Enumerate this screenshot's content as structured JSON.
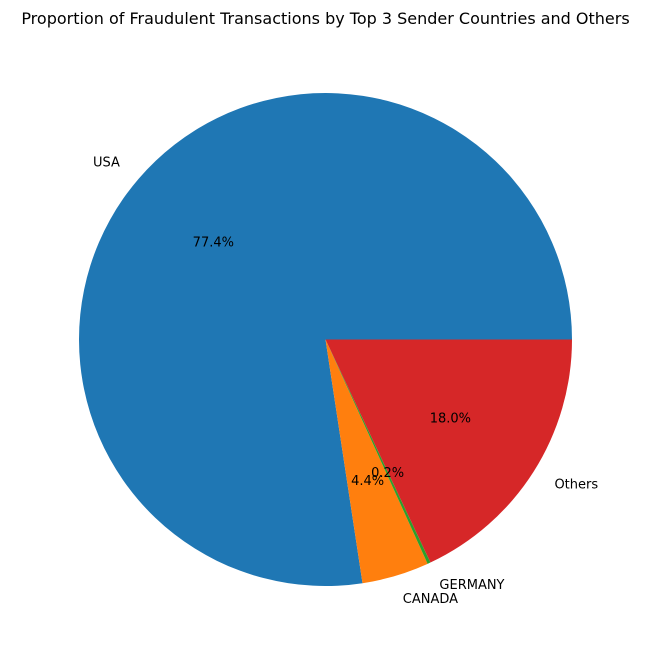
{
  "chart_data": {
    "type": "pie",
    "title": "Proportion of Fraudulent Transactions by Top 3 Sender Countries and Others",
    "categories": [
      "USA",
      "CANADA",
      "GERMANY",
      "Others"
    ],
    "values": [
      77.4,
      4.4,
      0.2,
      18.0
    ],
    "percent_labels": [
      "77.4%",
      "4.4%",
      "0.2%",
      "18.0%"
    ],
    "colors": [
      "#1f77b4",
      "#ff7f0e",
      "#2ca02c",
      "#d62728"
    ],
    "start_angle_deg": 0,
    "direction": "counterclockwise",
    "legend": "none"
  }
}
